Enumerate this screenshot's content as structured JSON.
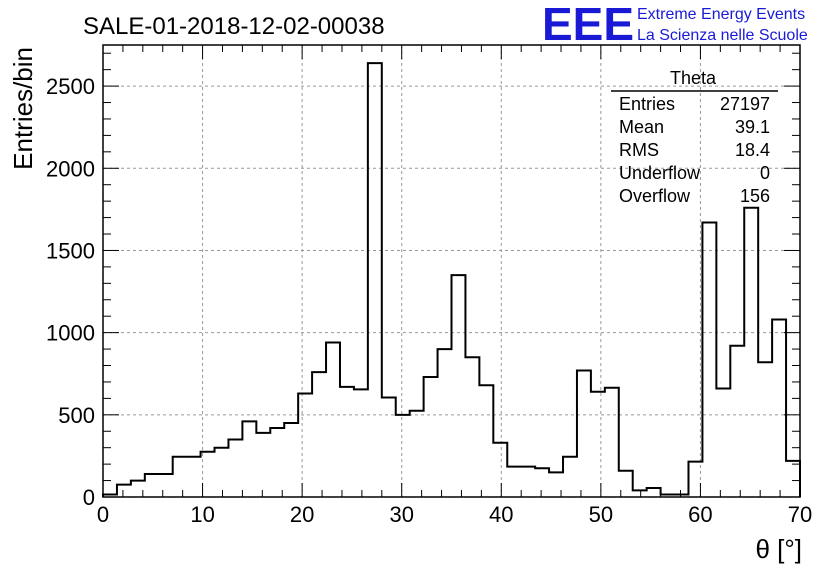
{
  "chart_data": {
    "type": "bar",
    "title": "SALE-01-2018-12-02-00038",
    "xlabel": "θ [°]",
    "ylabel": "Entries/bin",
    "xlim": [
      0,
      70
    ],
    "ylim": [
      0,
      2750
    ],
    "bin_width": 1.4,
    "x_ticks": [
      0,
      10,
      20,
      30,
      40,
      50,
      60,
      70
    ],
    "y_ticks": [
      0,
      500,
      1000,
      1500,
      2000,
      2500
    ],
    "grid": true,
    "values": [
      15,
      75,
      100,
      140,
      140,
      245,
      245,
      275,
      300,
      350,
      460,
      390,
      420,
      450,
      630,
      760,
      940,
      670,
      655,
      2640,
      605,
      500,
      525,
      730,
      900,
      1350,
      850,
      680,
      330,
      185,
      185,
      175,
      150,
      245,
      770,
      640,
      665,
      160,
      40,
      55,
      15,
      15,
      215,
      1670,
      660,
      920,
      1760,
      820,
      1080,
      220
    ],
    "stats": {
      "name": "Theta",
      "rows": [
        {
          "label": "Entries",
          "value": "27197"
        },
        {
          "label": "Mean",
          "value": "39.1"
        },
        {
          "label": "RMS",
          "value": "18.4"
        },
        {
          "label": "Underflow",
          "value": "0"
        },
        {
          "label": "Overflow",
          "value": "156"
        }
      ]
    },
    "colors": {
      "line": "#000000",
      "grid": "#999999",
      "logo": "#1a1ad6"
    }
  },
  "logo": {
    "mark": "EEE",
    "line1": "Extreme Energy Events",
    "line2": "La Scienza nelle Scuole"
  }
}
